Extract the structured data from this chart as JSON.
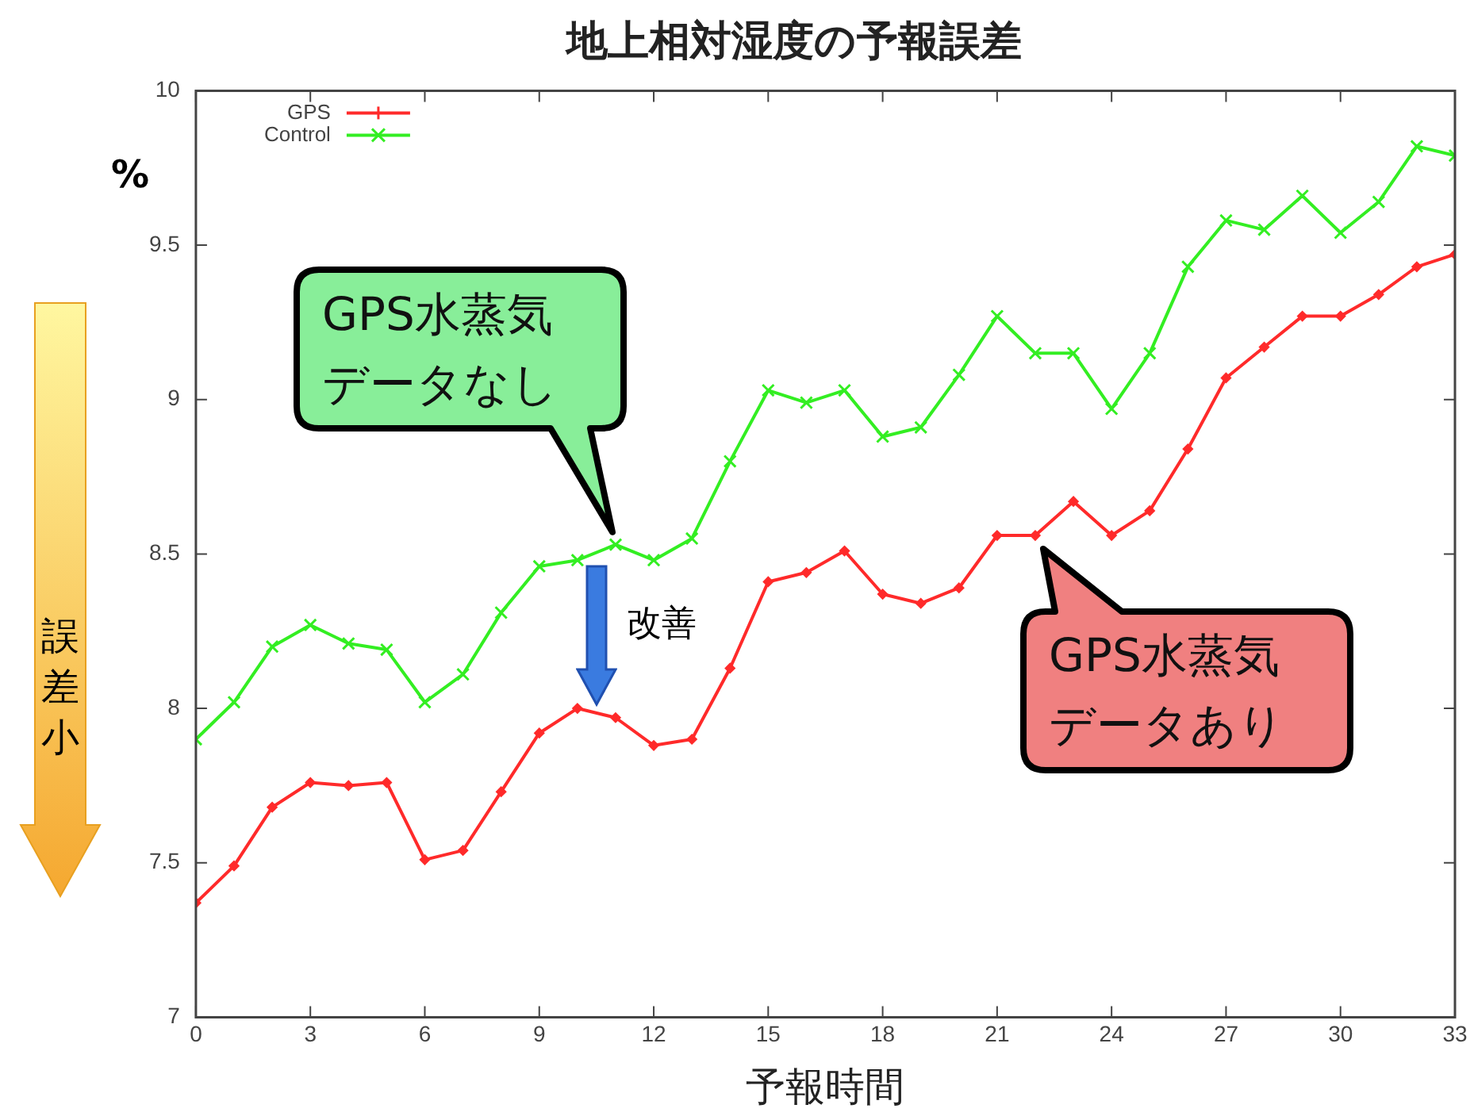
{
  "chart_data": {
    "type": "line",
    "title": "地上相対湿度の予報誤差",
    "xlabel": "予報時間",
    "ylabel": "%",
    "x": [
      0,
      1,
      2,
      3,
      4,
      5,
      6,
      7,
      8,
      9,
      10,
      11,
      12,
      13,
      14,
      15,
      16,
      17,
      18,
      19,
      20,
      21,
      22,
      23,
      24,
      25,
      26,
      27,
      28,
      29,
      30,
      31,
      32,
      33
    ],
    "series": [
      {
        "name": "GPS",
        "color": "#ff2a2a",
        "marker": "diamond",
        "values": [
          7.37,
          7.49,
          7.68,
          7.76,
          7.75,
          7.76,
          7.51,
          7.54,
          7.73,
          7.92,
          8.0,
          7.97,
          7.88,
          7.9,
          8.13,
          8.41,
          8.44,
          8.51,
          8.37,
          8.34,
          8.39,
          8.56,
          8.56,
          8.67,
          8.56,
          8.64,
          8.84,
          9.07,
          9.17,
          9.27,
          9.27,
          9.34,
          9.43,
          9.47
        ]
      },
      {
        "name": "Control",
        "color": "#33ee22",
        "marker": "cross",
        "values": [
          7.9,
          8.02,
          8.2,
          8.27,
          8.21,
          8.19,
          8.02,
          8.11,
          8.31,
          8.46,
          8.48,
          8.53,
          8.48,
          8.55,
          8.8,
          9.03,
          8.99,
          9.03,
          8.88,
          8.91,
          9.08,
          9.27,
          9.15,
          9.15,
          8.97,
          9.15,
          9.43,
          9.58,
          9.55,
          9.66,
          9.54,
          9.64,
          9.82,
          9.79
        ]
      }
    ],
    "xlim": [
      0,
      33
    ],
    "xticks": [
      0,
      3,
      6,
      9,
      12,
      15,
      18,
      21,
      24,
      27,
      30,
      33
    ],
    "ylim": [
      7,
      10
    ],
    "yticks": [
      7,
      7.5,
      8,
      8.5,
      9,
      9.5,
      10
    ],
    "legend": "top left",
    "line_style": "solid",
    "annotations": [
      "GPS水蒸気データなし",
      "GPS水蒸気データあり",
      "改善",
      "誤差小"
    ]
  }
}
